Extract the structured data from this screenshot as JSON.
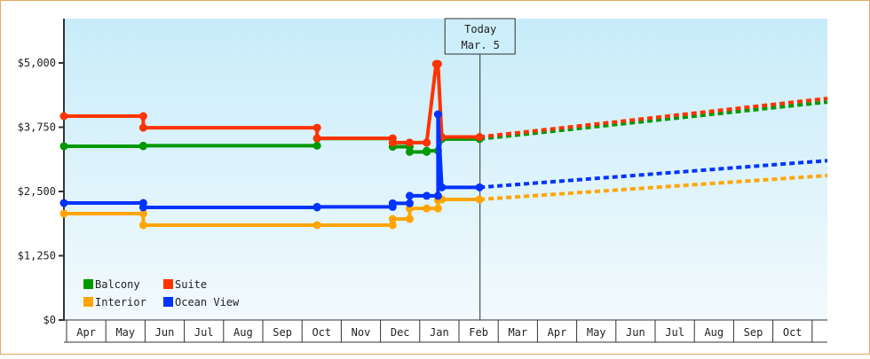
{
  "chart_data": {
    "type": "line",
    "title": "",
    "xlabel": "",
    "ylabel": "",
    "ylim": [
      0,
      5000
    ],
    "y_ticks": [
      {
        "value": 0,
        "label": "$0"
      },
      {
        "value": 1250,
        "label": "$1,250"
      },
      {
        "value": 2500,
        "label": "$2,500"
      },
      {
        "value": 3750,
        "label": "$3,750"
      },
      {
        "value": 5000,
        "label": "$5,000"
      }
    ],
    "x_ticks": [
      "Apr",
      "May",
      "Jun",
      "Jul",
      "Aug",
      "Sep",
      "Oct",
      "Nov",
      "Dec",
      "Jan",
      "Feb",
      "Mar",
      "Apr",
      "May",
      "Jun",
      "Jul",
      "Aug",
      "Sep",
      "Oct"
    ],
    "grid": false,
    "legend_position": "lower-left",
    "annotation": {
      "line1": "Today",
      "line2": "Mar. 5",
      "x_month_index": 11.0
    },
    "series": [
      {
        "name": "Balcony",
        "color": "#009900",
        "points": [
          [
            0,
            3380
          ],
          [
            2.1,
            3380
          ],
          [
            2.1,
            3390
          ],
          [
            6.7,
            3390
          ],
          [
            6.7,
            3530
          ],
          [
            8.7,
            3530
          ],
          [
            8.7,
            3370
          ],
          [
            9.15,
            3370
          ],
          [
            9.15,
            3270
          ],
          [
            9.6,
            3270
          ],
          [
            9.6,
            3290
          ],
          [
            9.9,
            3290
          ],
          [
            10.0,
            3520
          ],
          [
            11.0,
            3520
          ]
        ],
        "projection": [
          [
            11.0,
            3520
          ],
          [
            19.4,
            4240
          ]
        ]
      },
      {
        "name": "Suite",
        "color": "#ff3300",
        "points": [
          [
            0,
            3965
          ],
          [
            2.1,
            3965
          ],
          [
            2.1,
            3740
          ],
          [
            6.7,
            3740
          ],
          [
            6.7,
            3535
          ],
          [
            8.7,
            3535
          ],
          [
            8.7,
            3450
          ],
          [
            9.15,
            3450
          ],
          [
            9.15,
            3450
          ],
          [
            9.6,
            3450
          ],
          [
            9.6,
            3450
          ],
          [
            9.85,
            4980
          ],
          [
            9.9,
            4980
          ],
          [
            10.0,
            3560
          ],
          [
            11.0,
            3560
          ]
        ],
        "projection": [
          [
            11.0,
            3560
          ],
          [
            19.4,
            4310
          ]
        ]
      },
      {
        "name": "Interior",
        "color": "#ffa500",
        "points": [
          [
            0,
            2070
          ],
          [
            2.1,
            2070
          ],
          [
            2.1,
            1845
          ],
          [
            6.7,
            1845
          ],
          [
            8.7,
            1845
          ],
          [
            8.7,
            1965
          ],
          [
            9.15,
            1965
          ],
          [
            9.15,
            2170
          ],
          [
            9.6,
            2170
          ],
          [
            9.9,
            2170
          ],
          [
            9.9,
            2330
          ],
          [
            10.0,
            2345
          ],
          [
            11.0,
            2345
          ]
        ],
        "projection": [
          [
            11.0,
            2345
          ],
          [
            19.4,
            2810
          ]
        ]
      },
      {
        "name": "Ocean View",
        "color": "#0033ff",
        "points": [
          [
            0,
            2275
          ],
          [
            2.1,
            2275
          ],
          [
            2.1,
            2190
          ],
          [
            6.7,
            2190
          ],
          [
            6.7,
            2200
          ],
          [
            8.7,
            2200
          ],
          [
            8.7,
            2270
          ],
          [
            9.15,
            2270
          ],
          [
            9.15,
            2415
          ],
          [
            9.6,
            2415
          ],
          [
            9.9,
            2415
          ],
          [
            9.9,
            4000
          ],
          [
            10.0,
            2580
          ],
          [
            11.0,
            2580
          ]
        ],
        "projection": [
          [
            11.0,
            2580
          ],
          [
            19.4,
            3100
          ]
        ]
      }
    ]
  },
  "legend": {
    "items": [
      {
        "label": "Balcony",
        "color": "#009900"
      },
      {
        "label": "Suite",
        "color": "#ff3300"
      },
      {
        "label": "Interior",
        "color": "#ffa500"
      },
      {
        "label": "Ocean View",
        "color": "#0033ff"
      }
    ]
  },
  "today": {
    "line1": "Today",
    "line2": "Mar. 5"
  }
}
